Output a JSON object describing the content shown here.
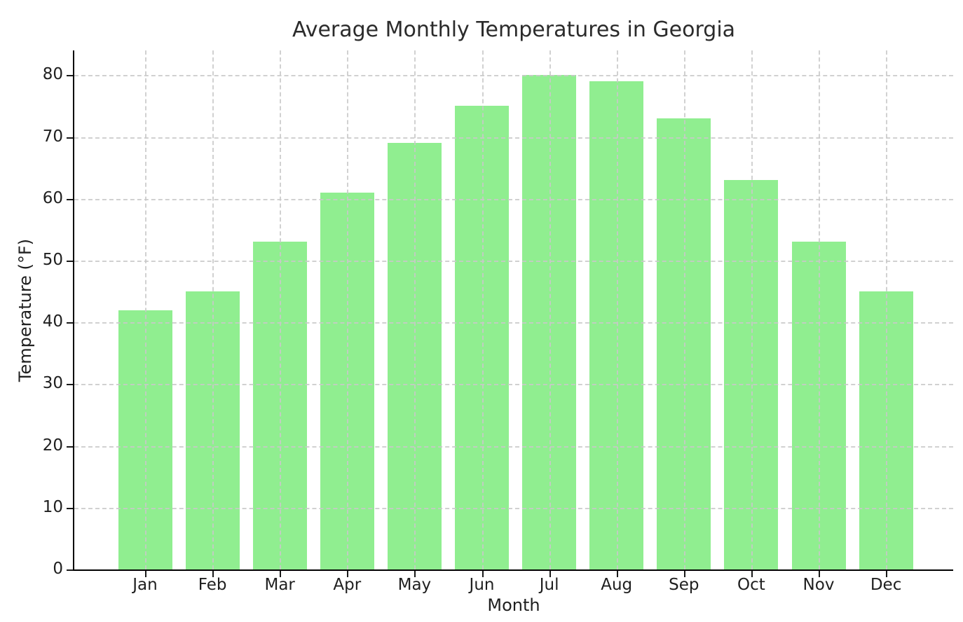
{
  "chart_data": {
    "type": "bar",
    "title": "Average Monthly Temperatures in Georgia",
    "xlabel": "Month",
    "ylabel": "Temperature (°F)",
    "categories": [
      "Jan",
      "Feb",
      "Mar",
      "Apr",
      "May",
      "Jun",
      "Jul",
      "Aug",
      "Sep",
      "Oct",
      "Nov",
      "Dec"
    ],
    "values": [
      42,
      45,
      53,
      61,
      69,
      75,
      80,
      79,
      73,
      63,
      53,
      45
    ],
    "yticks": [
      0,
      10,
      20,
      30,
      40,
      50,
      60,
      70,
      80
    ],
    "ylim": [
      0,
      84
    ],
    "grid": true,
    "grid_linestyle": "dashed",
    "grid_position": "above-bars",
    "legend": "none",
    "bar_color": "#90EE90",
    "grid_color": "#c9c9c9",
    "spine_color": "#000000",
    "text_color": "#1f1f1f",
    "background_color": "#ffffff"
  }
}
